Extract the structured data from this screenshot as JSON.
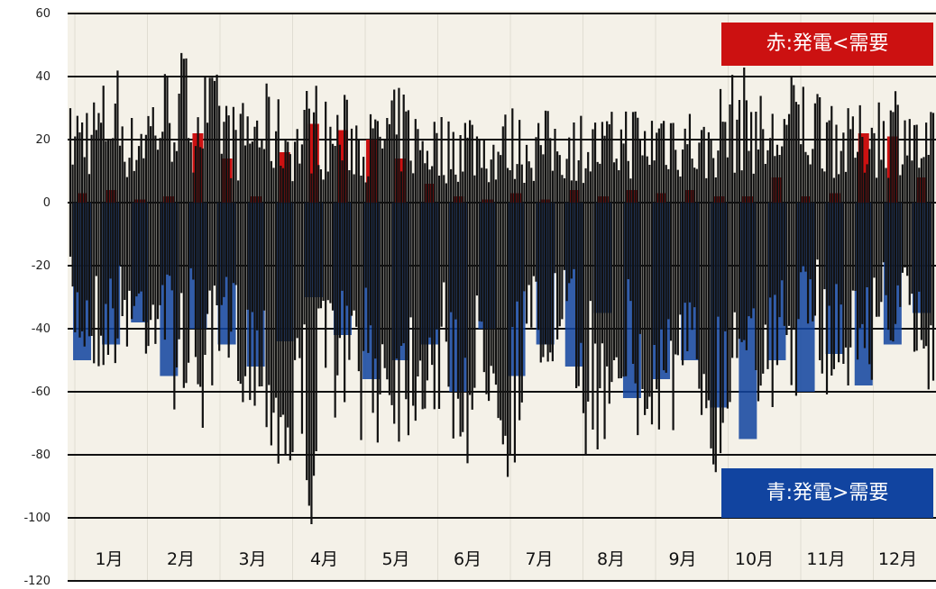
{
  "chart_data": {
    "type": "bar",
    "title": "",
    "xlabel": "",
    "ylabel": "",
    "ylim": [
      -120,
      60
    ],
    "yticks": [
      60,
      40,
      20,
      0,
      -20,
      -40,
      -60,
      -80,
      -100,
      -120
    ],
    "grid": "horizontal lines at each y tick",
    "months": [
      "1月",
      "2月",
      "3月",
      "4月",
      "5月",
      "6月",
      "7月",
      "8月",
      "9月",
      "10月",
      "11月",
      "12月"
    ],
    "legend": [
      {
        "label": "赤:発電<需要",
        "color": "#cc1111",
        "placement": "top-right"
      },
      {
        "label": "青:発電>需要",
        "color": "#1144a0",
        "placement": "bottom-right"
      }
    ],
    "series": [
      {
        "color": "#cc1111",
        "values": [
          3,
          4,
          1,
          2,
          22,
          14,
          2,
          16,
          25,
          23,
          20,
          14,
          6,
          2,
          1,
          3,
          1,
          4,
          2,
          4,
          3,
          4,
          2,
          2,
          8,
          2,
          3,
          22,
          21,
          8
        ]
      },
      {
        "color": "#1144a0",
        "values": [
          -50,
          -45,
          -38,
          -55,
          -40,
          -45,
          -52,
          -44,
          -30,
          -42,
          -56,
          -50,
          -45,
          -60,
          -40,
          -55,
          -45,
          -52,
          -35,
          -62,
          -56,
          -50,
          -65,
          -75,
          -50,
          -60,
          -48,
          -58,
          -45,
          -35
        ]
      },
      {
        "color": "#111111",
        "min": [
          -49,
          -52,
          -55,
          -53,
          -47,
          -51,
          -44,
          -69,
          -58,
          -84,
          -62,
          -60,
          -69,
          -72,
          -106,
          -89,
          -106,
          -65,
          -72,
          -75,
          -78,
          -78,
          -78,
          -72,
          -70,
          -73,
          -88,
          -76,
          -62,
          -100,
          -58,
          -62,
          -57,
          -53,
          -80,
          -91,
          -60,
          -65,
          -98,
          -72,
          -80,
          -76,
          -82,
          -88,
          -60,
          -48,
          -84,
          -62,
          -62,
          -44,
          -62,
          -60,
          -62,
          -56,
          -45,
          -52,
          -60,
          -68
        ],
        "max": [
          32,
          37,
          38,
          49,
          28,
          38,
          43,
          52,
          48,
          43,
          41,
          30,
          37,
          38,
          33,
          30,
          43,
          32,
          35,
          34,
          29,
          35,
          38,
          30,
          30,
          28,
          33,
          30,
          25,
          32,
          28,
          30,
          30,
          29,
          30,
          28,
          30,
          35,
          28,
          37,
          35,
          32,
          26,
          40,
          43,
          44,
          30,
          36,
          45,
          38,
          44,
          30,
          30,
          38,
          36,
          45,
          26,
          30
        ]
      }
    ]
  }
}
